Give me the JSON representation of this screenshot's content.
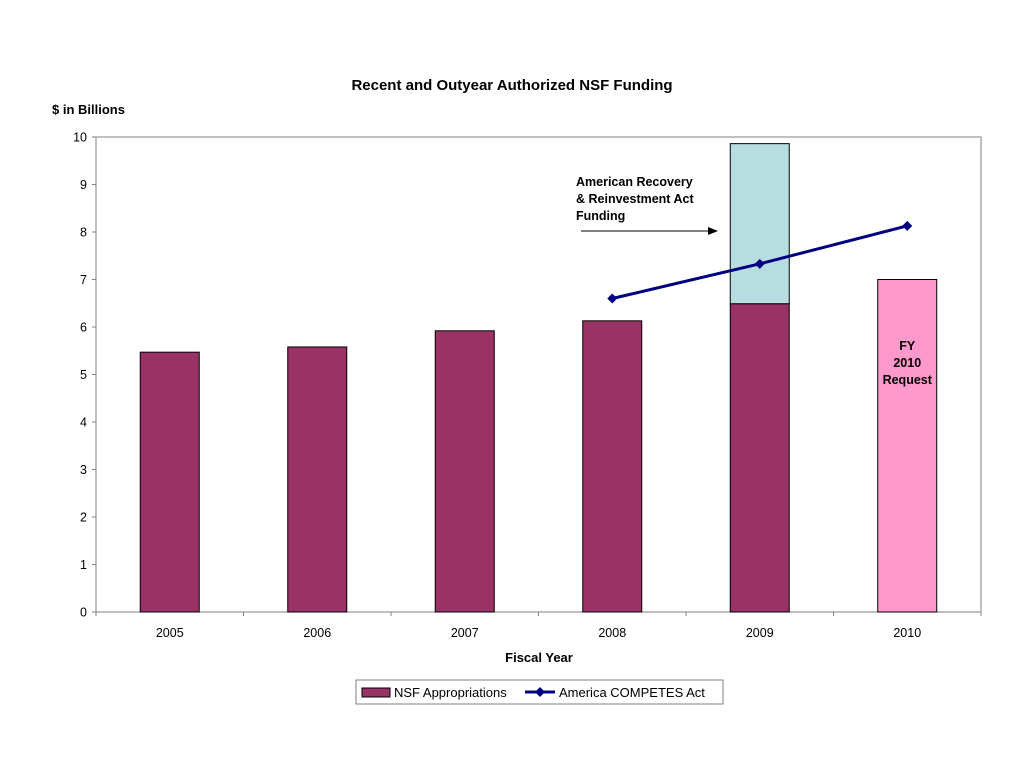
{
  "chart_data": {
    "type": "bar",
    "title": "Recent and Outyear Authorized NSF Funding",
    "ylabel": "$ in Billions",
    "xlabel": "Fiscal Year",
    "ylim": [
      0,
      10
    ],
    "yticks": [
      0,
      1,
      2,
      3,
      4,
      5,
      6,
      7,
      8,
      9,
      10
    ],
    "grid": false,
    "legend_position": "bottom",
    "categories": [
      "2005",
      "2006",
      "2007",
      "2008",
      "2009",
      "2010"
    ],
    "series": [
      {
        "name": "NSF Appropriations",
        "kind": "bar",
        "color": "#993366",
        "values": [
          5.47,
          5.58,
          5.92,
          6.13,
          6.49,
          null
        ]
      },
      {
        "kind": "bar-stacked",
        "color": "#B8DDE1",
        "values": [
          null,
          null,
          null,
          null,
          3.37,
          null
        ]
      },
      {
        "kind": "bar",
        "color": "#FF99CC",
        "values": [
          null,
          null,
          null,
          null,
          null,
          7.0
        ]
      },
      {
        "name": "America COMPETES Act",
        "kind": "line",
        "color": "#000080",
        "marker": "diamond",
        "values": [
          null,
          null,
          null,
          6.6,
          7.33,
          8.13
        ]
      }
    ],
    "annotations": [
      {
        "lines": [
          "American Recovery",
          "& Reinvestment Act",
          "Funding"
        ],
        "arrow_to_category": "2009"
      },
      {
        "lines": [
          "FY",
          "2010",
          "Request"
        ],
        "category": "2010"
      }
    ]
  }
}
